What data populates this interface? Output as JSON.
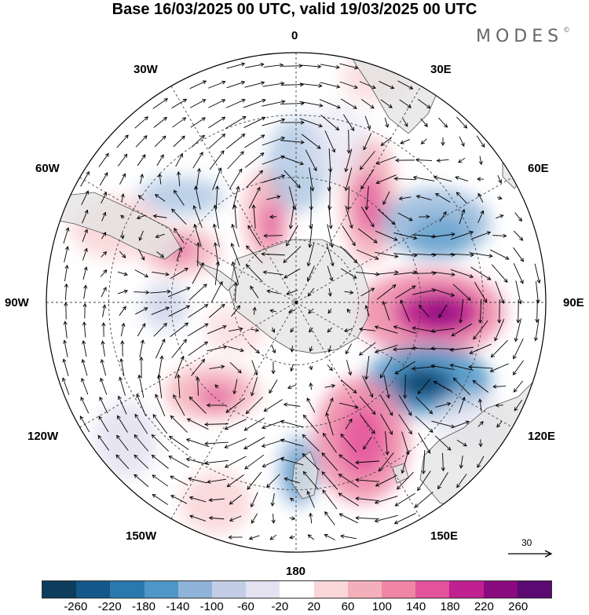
{
  "title": "Base 16/03/2025 00 UTC, valid 19/03/2025 00 UTC",
  "logo": "MODES",
  "logo_mark": "©",
  "longitude_labels": {
    "top": "0",
    "tr": "30E",
    "rt": "60E",
    "right": "90E",
    "rb": "120E",
    "br": "150E",
    "bottom": "180",
    "bl": "150W",
    "lb": "120W",
    "left": "90W",
    "lt": "60W",
    "tl": "30W"
  },
  "reference_vector": "30",
  "colorbar": {
    "labels": [
      "-260",
      "-220",
      "-180",
      "-140",
      "-100",
      "-60",
      "-20",
      "20",
      "60",
      "100",
      "140",
      "180",
      "220",
      "260"
    ],
    "colors": [
      "#0d3c5c",
      "#14578a",
      "#2a78ad",
      "#4e96c6",
      "#8fb3d8",
      "#c3cde5",
      "#e4e2f1",
      "#ffffff",
      "#f9d6d8",
      "#f4b0ba",
      "#ef86a6",
      "#e3529c",
      "#c02090",
      "#8a0a80",
      "#5a0a70"
    ]
  },
  "map_colors": {
    "land": "#e3e3e3",
    "coast": "#555555",
    "grid": "#444444",
    "arrow": "#000000"
  }
}
